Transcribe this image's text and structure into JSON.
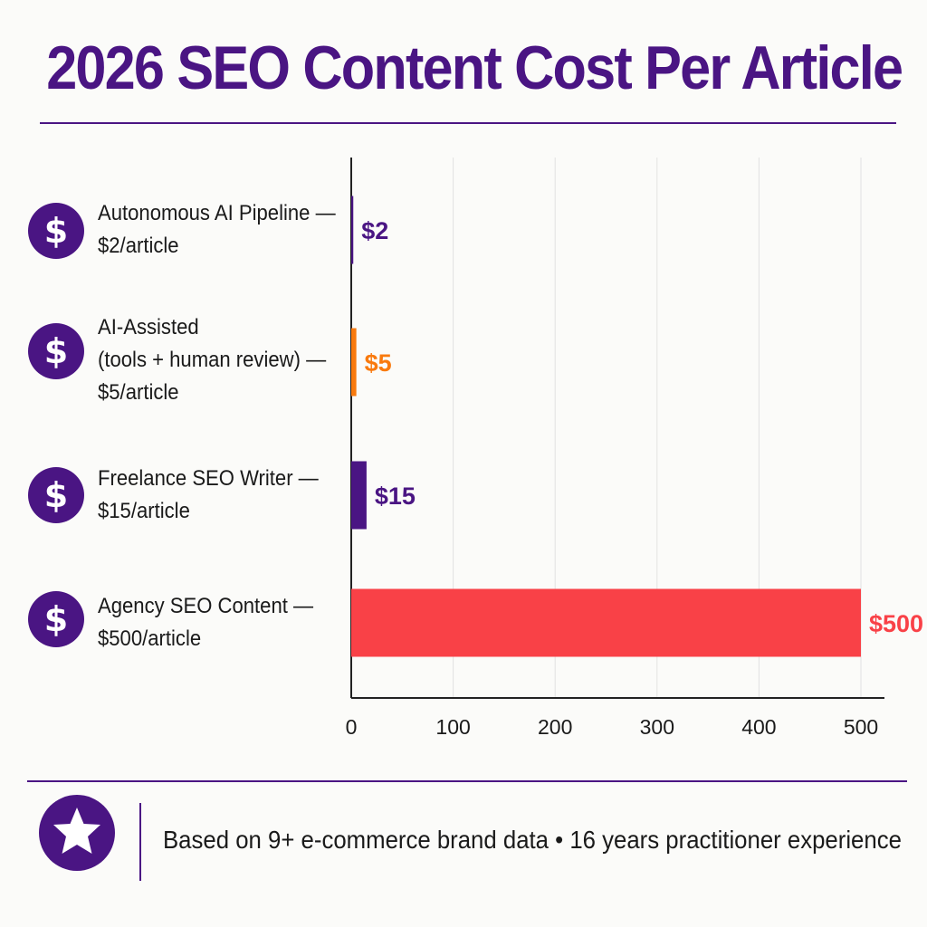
{
  "chart_data": {
    "type": "bar",
    "orientation": "horizontal",
    "title": "2026 SEO Content Cost Per Article",
    "categories": [
      "Autonomous AI Pipeline —\n$2/article",
      "AI-Assisted\n(tools + human review) —\n$5/article",
      "Freelance SEO Writer —\n$15/article",
      "Agency SEO Content —\n$500/article"
    ],
    "values": [
      2,
      5,
      15,
      500
    ],
    "value_labels": [
      "$2",
      "$5",
      "$15",
      "$500"
    ],
    "bar_colors": [
      "#4a1583",
      "#f97a0e",
      "#4a1583",
      "#f94147"
    ],
    "label_colors": [
      "#4a1583",
      "#f97a0e",
      "#4a1583",
      "#f94147"
    ],
    "xticks": [
      0,
      100,
      200,
      300,
      400,
      500
    ],
    "xtick_labels": [
      "0",
      "100",
      "200",
      "300",
      "400",
      "500"
    ],
    "xlim": [
      0,
      500
    ],
    "xlabel": "",
    "ylabel": "",
    "grid": "vertical",
    "legend": "none",
    "category_icon": "dollar-icon"
  },
  "footer": {
    "icon": "star-icon",
    "text": "Based on 9+ e-commerce brand data • 16 years practitioner experience"
  },
  "colors": {
    "brand_purple": "#4a1583",
    "orange": "#f97a0e",
    "red": "#f94147"
  }
}
